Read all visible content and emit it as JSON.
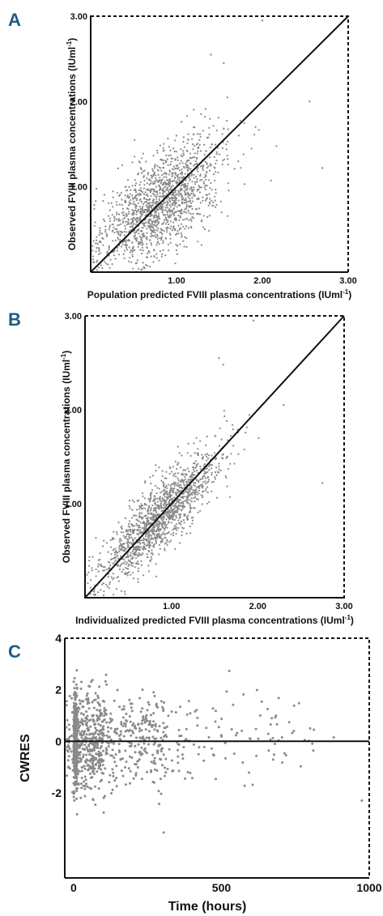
{
  "chart_data": [
    {
      "panel": "A",
      "type": "scatter",
      "xlabel": "Population predicted FVIII plasma concentrations (IUml",
      "xlabel_sup": "-1",
      "xlabel_tail": ")",
      "ylabel": "Observed FVIII plasma concentrations (IUml",
      "ylabel_sup": "-1",
      "ylabel_tail": ")",
      "xlim": [
        0,
        3
      ],
      "ylim": [
        0,
        3
      ],
      "xticks": [
        "1.00",
        "2.00",
        "3.00"
      ],
      "yticks": [
        "1.00",
        "2.00",
        "3.00"
      ],
      "identity_line": true,
      "approx_points": 1500,
      "cloud": {
        "center": [
          0.82,
          0.82
        ],
        "sd_x": 0.36,
        "sd_y": 0.36,
        "corr": 0.62
      },
      "notable_points": [
        [
          2.0,
          2.95
        ],
        [
          2.7,
          1.22
        ],
        [
          2.55,
          2.0
        ],
        [
          1.4,
          2.55
        ],
        [
          1.55,
          2.45
        ]
      ]
    },
    {
      "panel": "B",
      "type": "scatter",
      "xlabel": "Individualized predicted FVIII plasma concentrations (IUml",
      "xlabel_sup": "-1",
      "xlabel_tail": ")",
      "ylabel": "Observed FVIII plasma concentrations (IUml",
      "ylabel_sup": "-1",
      "ylabel_tail": ")",
      "xlim": [
        0,
        3
      ],
      "ylim": [
        0,
        3
      ],
      "xticks": [
        "1.00",
        "2.00",
        "3.00"
      ],
      "yticks": [
        "1.00",
        "2.00",
        "3.00"
      ],
      "identity_line": true,
      "approx_points": 1500,
      "cloud": {
        "center": [
          0.85,
          0.85
        ],
        "sd_x": 0.35,
        "sd_y": 0.35,
        "corr": 0.85
      },
      "notable_points": [
        [
          1.95,
          2.95
        ],
        [
          2.75,
          1.22
        ],
        [
          2.3,
          2.05
        ],
        [
          1.55,
          2.55
        ],
        [
          1.6,
          2.48
        ]
      ]
    },
    {
      "panel": "C",
      "type": "scatter",
      "xlabel": "Time (hours)",
      "ylabel": "CWRES",
      "xlim": [
        -30,
        1000
      ],
      "ylim": [
        -5.3,
        4
      ],
      "xticks": [
        {
          "label": "0",
          "value": 0
        },
        {
          "label": "500",
          "value": 500
        },
        {
          "label": "1000",
          "value": 1000
        }
      ],
      "yticks": [
        {
          "label": "4",
          "value": 4
        },
        {
          "label": "2",
          "value": 2
        },
        {
          "label": "0",
          "value": 0
        },
        {
          "label": "-2",
          "value": -2
        }
      ],
      "zero_line": true,
      "approx_points": 1200,
      "notable_points": [
        [
          975,
          -2.3
        ],
        [
          880,
          0.15
        ],
        [
          800,
          0.5
        ],
        [
          745,
          0.4
        ],
        [
          705,
          0.15
        ]
      ]
    }
  ],
  "panels": {
    "a_letter": "A",
    "b_letter": "B",
    "c_letter": "C"
  }
}
